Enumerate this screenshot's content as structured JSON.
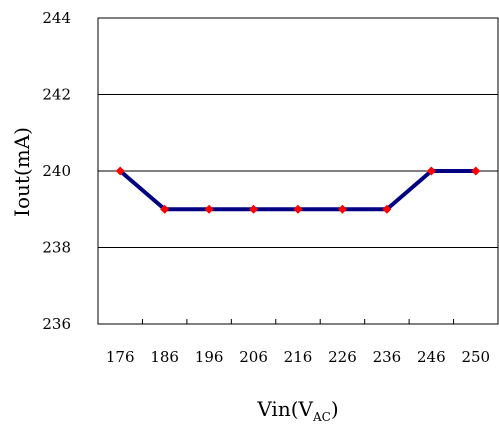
{
  "chart_data": {
    "type": "line",
    "categories": [
      "176",
      "186",
      "196",
      "206",
      "216",
      "226",
      "236",
      "246",
      "250"
    ],
    "series": [
      {
        "values": [
          240,
          239,
          239,
          239,
          239,
          239,
          239,
          240,
          240
        ],
        "color": "#000080",
        "marker_color": "#ff0000"
      }
    ],
    "xlabel_main": "Vin",
    "xlabel_open": "(V",
    "xlabel_sub": "AC",
    "xlabel_close": ")",
    "ylabel": "Iout(mA)",
    "ylim": [
      236,
      244
    ],
    "yticks": [
      "236",
      "238",
      "240",
      "242",
      "244"
    ],
    "grid": true,
    "legend": "none"
  }
}
